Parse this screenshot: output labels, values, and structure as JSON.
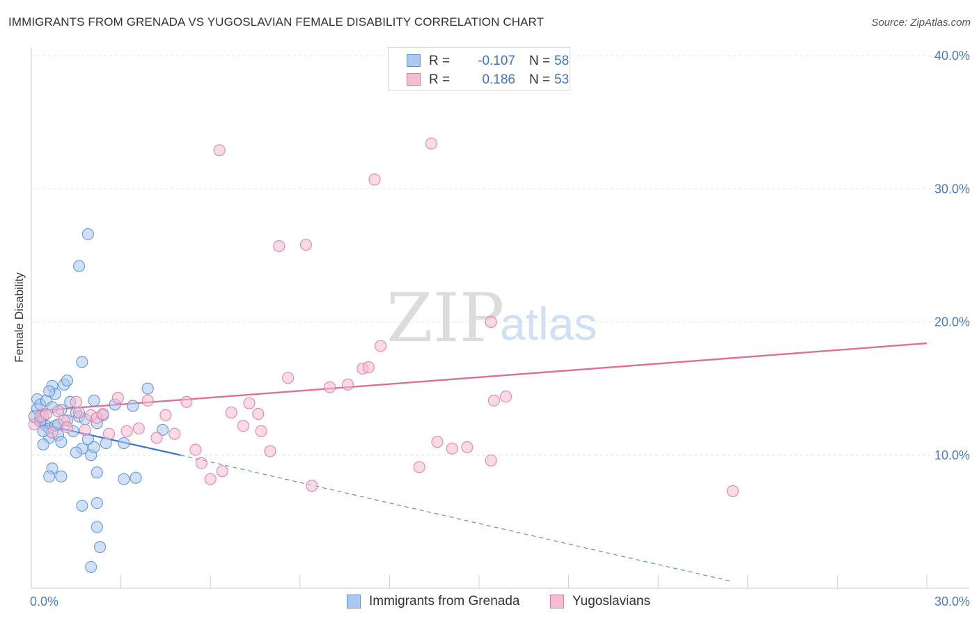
{
  "header": {
    "title": "IMMIGRANTS FROM GRENADA VS YUGOSLAVIAN FEMALE DISABILITY CORRELATION CHART",
    "source": "Source: ZipAtlas.com"
  },
  "watermark": {
    "zip": "ZIP",
    "atlas": "atlas"
  },
  "legend": {
    "r_label": "R =",
    "n_label": "N =",
    "series": [
      {
        "r": "-0.107",
        "n": "58",
        "fill": "#aac8f0",
        "stroke": "#5b8fd6"
      },
      {
        "r": "0.186",
        "n": "53",
        "fill": "#f6bcd0",
        "stroke": "#e27aa0"
      }
    ]
  },
  "bottom_legend": [
    {
      "label": "Immigrants from Grenada"
    },
    {
      "label": "Yugoslavians"
    }
  ],
  "chart_data": {
    "type": "scatter",
    "title": "IMMIGRANTS FROM GRENADA VS YUGOSLAVIAN FEMALE DISABILITY CORRELATION CHART",
    "xlabel": "",
    "ylabel": "Female Disability",
    "xlim": [
      0,
      30
    ],
    "ylim": [
      0,
      40
    ],
    "x_tick_labels": [
      "0.0%",
      "30.0%"
    ],
    "y_ticks": [
      10,
      20,
      30,
      40
    ],
    "y_tick_labels": [
      "10.0%",
      "20.0%",
      "30.0%",
      "40.0%"
    ],
    "grid": true,
    "legend_position": "top-center",
    "series": [
      {
        "name": "Immigrants from Grenada",
        "color": "#5b8fd6",
        "fill": "#aac8f0",
        "trend": {
          "x": [
            0.0,
            5.0
          ],
          "y": [
            12.5,
            10.0
          ],
          "extrapolate_to": [
            23.5,
            0.5
          ]
        },
        "points": [
          [
            0.1,
            12.9
          ],
          [
            0.2,
            13.5
          ],
          [
            0.2,
            14.2
          ],
          [
            0.3,
            12.6
          ],
          [
            0.3,
            13.8
          ],
          [
            0.4,
            12.9
          ],
          [
            0.5,
            12.2
          ],
          [
            0.5,
            14.1
          ],
          [
            0.6,
            12.0
          ],
          [
            0.6,
            11.3
          ],
          [
            0.7,
            15.2
          ],
          [
            0.8,
            14.6
          ],
          [
            0.8,
            12.2
          ],
          [
            0.9,
            11.5
          ],
          [
            1.0,
            13.4
          ],
          [
            1.1,
            15.3
          ],
          [
            1.2,
            15.6
          ],
          [
            1.2,
            12.6
          ],
          [
            1.3,
            14.0
          ],
          [
            1.4,
            11.8
          ],
          [
            1.5,
            13.2
          ],
          [
            1.6,
            12.9
          ],
          [
            1.7,
            10.5
          ],
          [
            1.8,
            12.7
          ],
          [
            1.9,
            11.2
          ],
          [
            2.0,
            10.0
          ],
          [
            2.1,
            10.6
          ],
          [
            2.2,
            12.4
          ],
          [
            0.3,
            12.5
          ],
          [
            0.4,
            11.8
          ],
          [
            0.6,
            14.8
          ],
          [
            0.7,
            13.6
          ],
          [
            0.9,
            12.3
          ],
          [
            1.0,
            11.0
          ],
          [
            2.4,
            13.0
          ],
          [
            2.5,
            10.9
          ],
          [
            1.5,
            10.2
          ],
          [
            2.2,
            8.7
          ],
          [
            1.7,
            6.2
          ],
          [
            2.2,
            4.6
          ],
          [
            2.3,
            3.1
          ],
          [
            2.0,
            1.6
          ],
          [
            0.4,
            10.8
          ],
          [
            0.7,
            9.0
          ],
          [
            0.6,
            8.4
          ],
          [
            1.0,
            8.4
          ],
          [
            1.6,
            24.2
          ],
          [
            1.9,
            26.6
          ],
          [
            1.7,
            17.0
          ],
          [
            2.2,
            6.4
          ],
          [
            3.1,
            10.9
          ],
          [
            3.1,
            8.2
          ],
          [
            3.5,
            8.3
          ],
          [
            2.1,
            14.1
          ],
          [
            2.8,
            13.8
          ],
          [
            3.4,
            13.7
          ],
          [
            3.9,
            15.0
          ],
          [
            4.4,
            11.9
          ]
        ]
      },
      {
        "name": "Yugoslavians",
        "color": "#e27aa0",
        "fill": "#f6bcd0",
        "trend": {
          "x": [
            0.0,
            30.0
          ],
          "y": [
            13.3,
            18.4
          ]
        },
        "points": [
          [
            0.1,
            12.3
          ],
          [
            0.3,
            12.9
          ],
          [
            0.5,
            13.1
          ],
          [
            0.7,
            11.7
          ],
          [
            0.9,
            13.3
          ],
          [
            1.1,
            12.6
          ],
          [
            1.2,
            12.1
          ],
          [
            1.5,
            14.0
          ],
          [
            1.6,
            13.2
          ],
          [
            1.8,
            11.9
          ],
          [
            2.0,
            13.0
          ],
          [
            2.2,
            12.8
          ],
          [
            2.4,
            13.1
          ],
          [
            2.6,
            11.6
          ],
          [
            2.9,
            14.3
          ],
          [
            3.2,
            11.8
          ],
          [
            3.6,
            12.0
          ],
          [
            3.9,
            14.1
          ],
          [
            4.2,
            11.3
          ],
          [
            4.5,
            13.0
          ],
          [
            4.8,
            11.6
          ],
          [
            5.2,
            14.0
          ],
          [
            5.5,
            10.4
          ],
          [
            5.7,
            9.4
          ],
          [
            6.0,
            8.2
          ],
          [
            6.4,
            8.8
          ],
          [
            6.7,
            13.2
          ],
          [
            7.1,
            12.2
          ],
          [
            7.3,
            13.9
          ],
          [
            7.7,
            11.8
          ],
          [
            8.0,
            10.3
          ],
          [
            8.6,
            15.8
          ],
          [
            8.3,
            25.7
          ],
          [
            9.2,
            25.8
          ],
          [
            6.3,
            32.9
          ],
          [
            11.5,
            30.7
          ],
          [
            13.4,
            33.4
          ],
          [
            7.6,
            13.1
          ],
          [
            9.4,
            7.7
          ],
          [
            10.0,
            15.1
          ],
          [
            10.6,
            15.3
          ],
          [
            11.1,
            16.5
          ],
          [
            11.3,
            16.6
          ],
          [
            11.7,
            18.2
          ],
          [
            13.0,
            9.1
          ],
          [
            13.6,
            11.0
          ],
          [
            14.1,
            10.5
          ],
          [
            14.6,
            10.6
          ],
          [
            15.4,
            9.6
          ],
          [
            15.5,
            14.1
          ],
          [
            15.9,
            14.4
          ],
          [
            15.4,
            20.0
          ],
          [
            23.5,
            7.3
          ]
        ]
      }
    ]
  }
}
